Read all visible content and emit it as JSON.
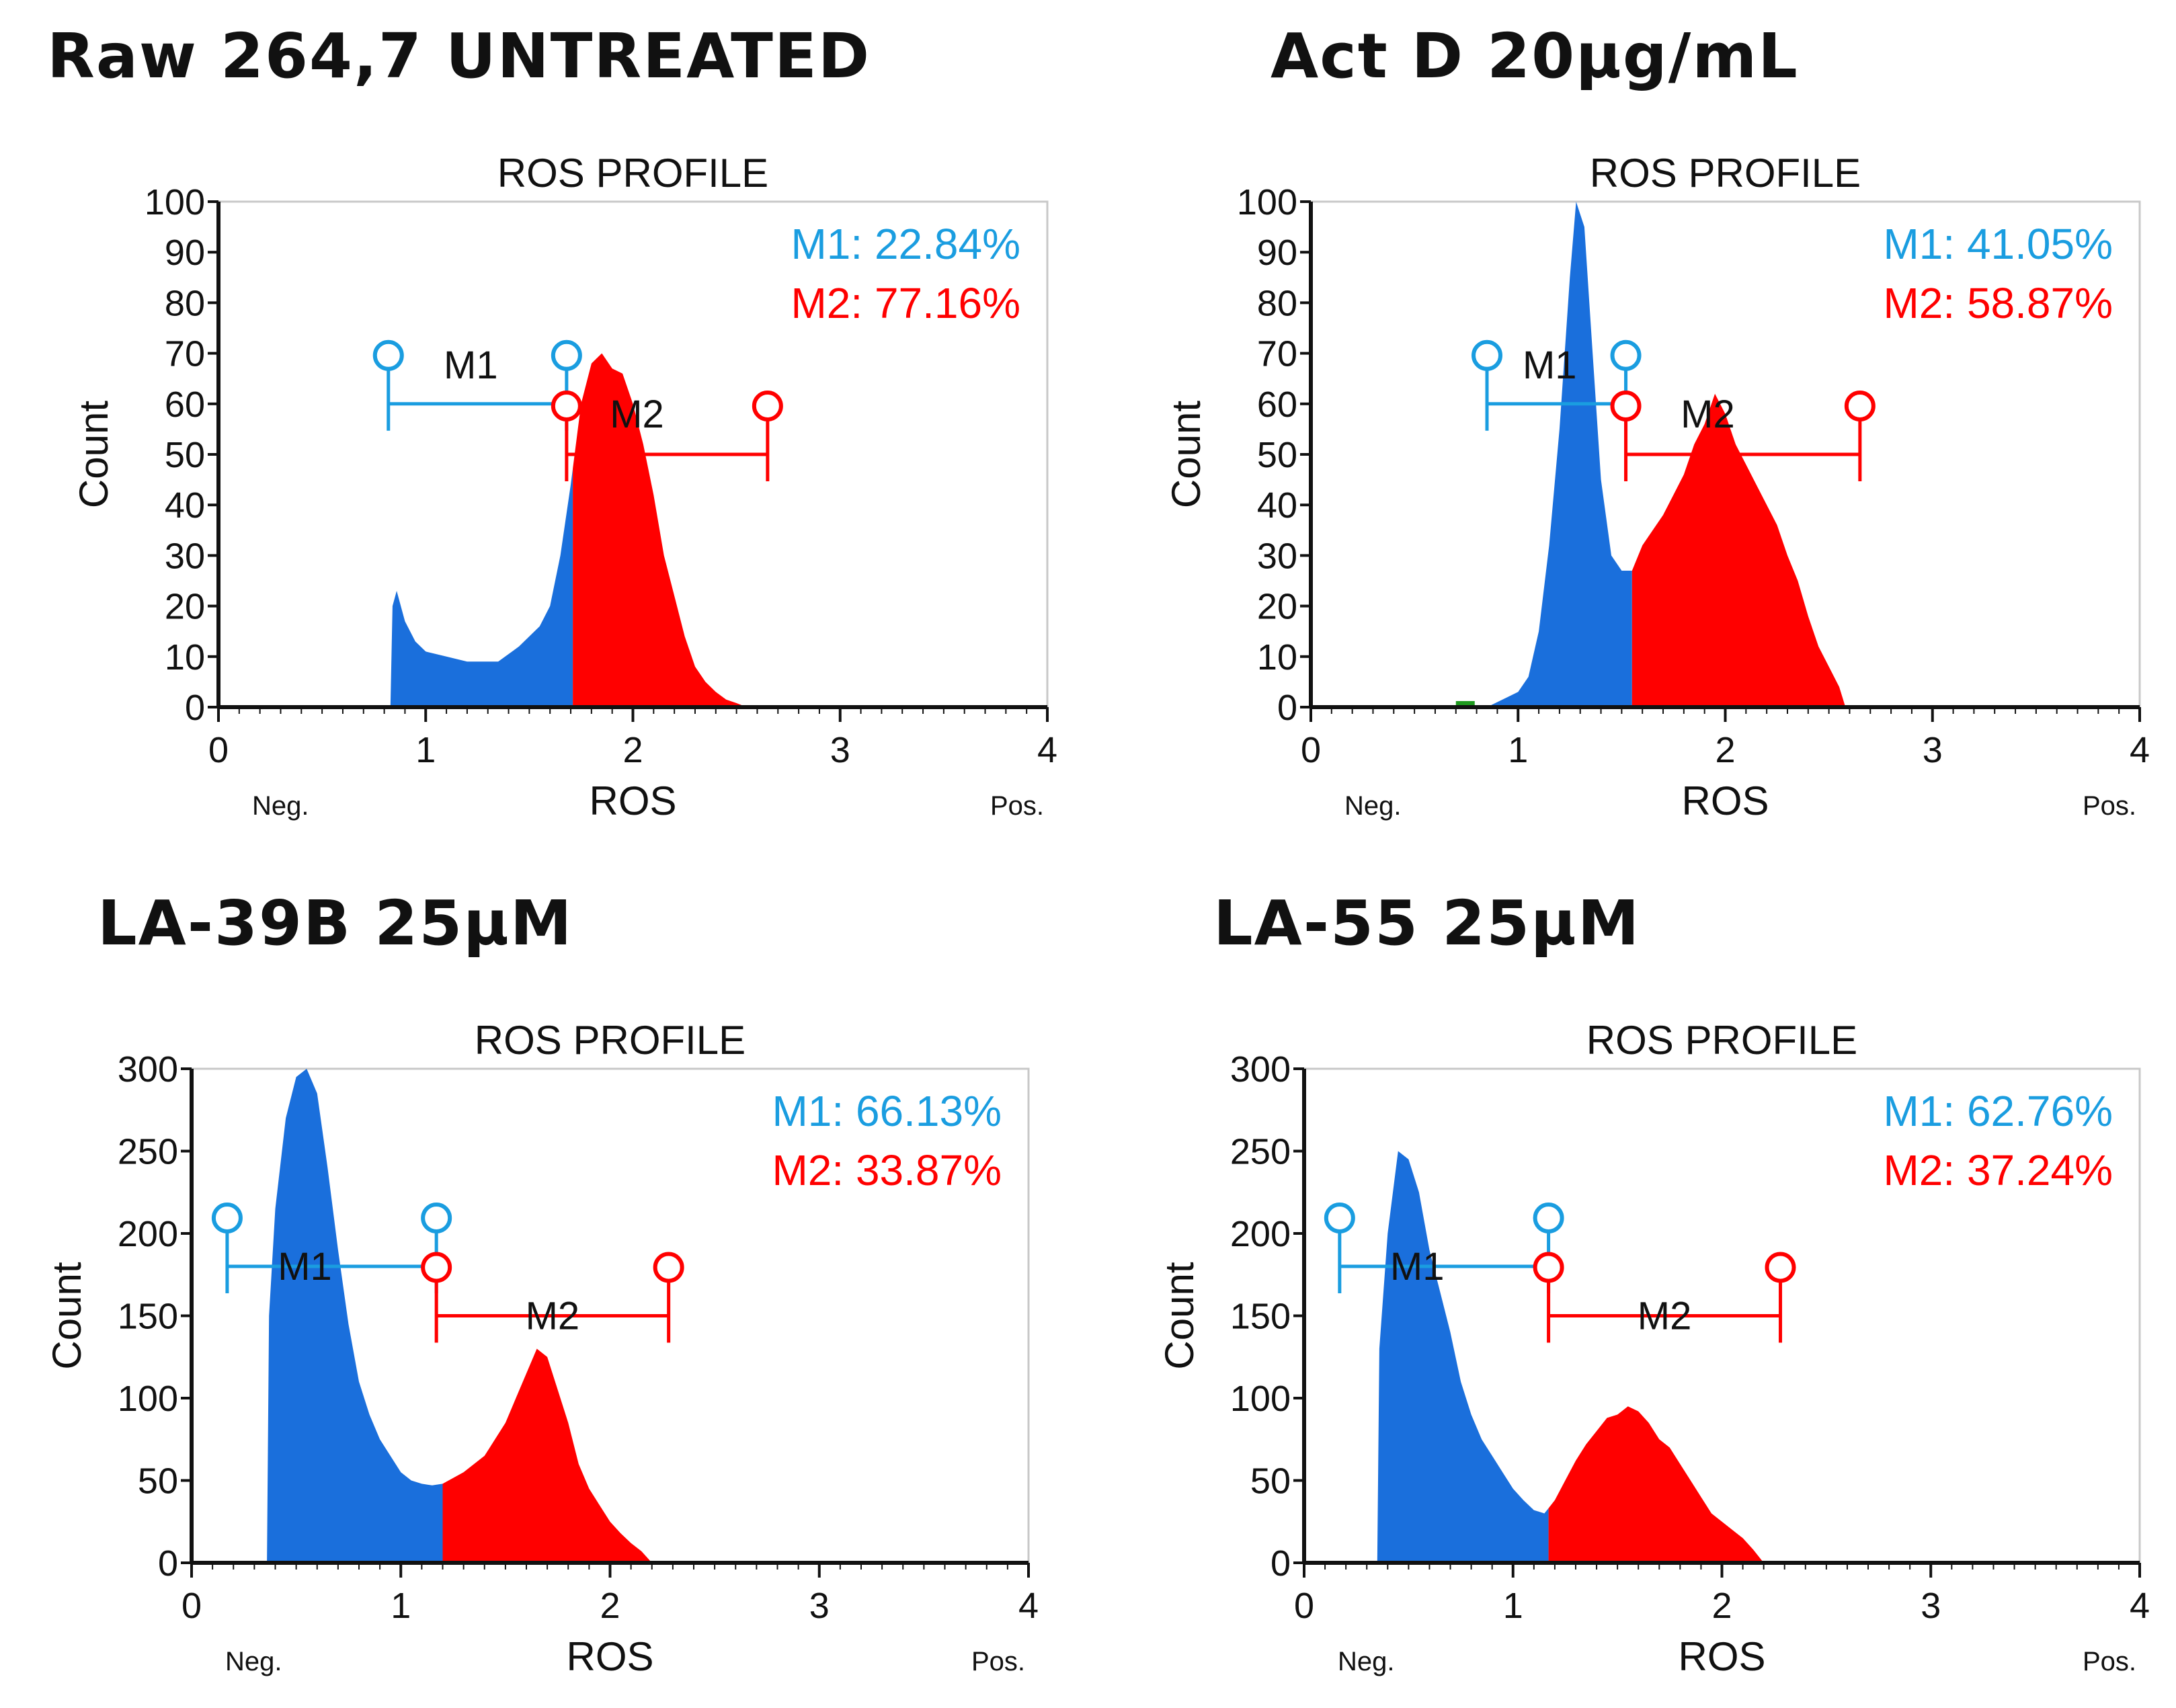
{
  "colors": {
    "m1": "#1a6fdc",
    "m2": "#ff0000",
    "m1_text": "#1a9de0",
    "m2_text": "#ff0000",
    "stray": "#1f9a1f"
  },
  "chart_data": [
    {
      "type": "histogram",
      "panel_title": "Raw 264,7 UNTREATED",
      "title": "ROS PROFILE",
      "xlabel": "ROS",
      "ylabel": "Count",
      "xlim": [
        0,
        4
      ],
      "ylim": [
        0,
        100
      ],
      "xticks": [
        "0",
        "1",
        "2",
        "3",
        "4"
      ],
      "yticks": [
        "0",
        "10",
        "20",
        "30",
        "40",
        "50",
        "60",
        "70",
        "80",
        "90",
        "100"
      ],
      "x_end_labels": {
        "neg": "Neg.",
        "pos": "Pos."
      },
      "markers": [
        {
          "name": "M1",
          "label": "M1",
          "pct_text": "M1: 22.84%",
          "pct": 22.84,
          "range": [
            0.82,
            1.68
          ],
          "bar_y": 60
        },
        {
          "name": "M2",
          "label": "M2",
          "pct_text": "M2: 77.16%",
          "pct": 77.16,
          "range": [
            1.68,
            2.65
          ],
          "bar_y": 50
        }
      ],
      "split_x": 1.71,
      "profile": [
        [
          0.83,
          0
        ],
        [
          0.84,
          20
        ],
        [
          0.86,
          23
        ],
        [
          0.9,
          17
        ],
        [
          0.95,
          13
        ],
        [
          1.0,
          11
        ],
        [
          1.1,
          10
        ],
        [
          1.2,
          9
        ],
        [
          1.3,
          9
        ],
        [
          1.35,
          9
        ],
        [
          1.45,
          12
        ],
        [
          1.55,
          16
        ],
        [
          1.6,
          20
        ],
        [
          1.65,
          30
        ],
        [
          1.7,
          44
        ],
        [
          1.75,
          60
        ],
        [
          1.8,
          68
        ],
        [
          1.85,
          70
        ],
        [
          1.9,
          67
        ],
        [
          1.95,
          66
        ],
        [
          2.0,
          60
        ],
        [
          2.05,
          52
        ],
        [
          2.1,
          42
        ],
        [
          2.15,
          30
        ],
        [
          2.2,
          22
        ],
        [
          2.25,
          14
        ],
        [
          2.3,
          8
        ],
        [
          2.35,
          5
        ],
        [
          2.4,
          3
        ],
        [
          2.45,
          1.5
        ],
        [
          2.5,
          0.8
        ],
        [
          2.55,
          0
        ]
      ]
    },
    {
      "type": "histogram",
      "panel_title": "Act D 20µg/mL",
      "title": "ROS PROFILE",
      "xlabel": "ROS",
      "ylabel": "Count",
      "xlim": [
        0,
        4
      ],
      "ylim": [
        0,
        100
      ],
      "xticks": [
        "0",
        "1",
        "2",
        "3",
        "4"
      ],
      "yticks": [
        "0",
        "10",
        "20",
        "30",
        "40",
        "50",
        "60",
        "70",
        "80",
        "90",
        "100"
      ],
      "x_end_labels": {
        "neg": "Neg.",
        "pos": "Pos."
      },
      "markers": [
        {
          "name": "M1",
          "label": "M1",
          "pct_text": "M1: 41.05%",
          "pct": 41.05,
          "range": [
            0.85,
            1.52
          ],
          "bar_y": 60
        },
        {
          "name": "M2",
          "label": "M2",
          "pct_text": "M2: 58.87%",
          "pct": 58.87,
          "range": [
            1.52,
            2.65
          ],
          "bar_y": 50
        }
      ],
      "split_x": 1.55,
      "profile": [
        [
          0.85,
          0
        ],
        [
          0.9,
          1
        ],
        [
          0.95,
          2
        ],
        [
          1.0,
          3
        ],
        [
          1.05,
          6
        ],
        [
          1.1,
          15
        ],
        [
          1.15,
          32
        ],
        [
          1.2,
          55
        ],
        [
          1.25,
          85
        ],
        [
          1.28,
          100
        ],
        [
          1.32,
          95
        ],
        [
          1.36,
          70
        ],
        [
          1.4,
          45
        ],
        [
          1.45,
          30
        ],
        [
          1.5,
          27
        ],
        [
          1.55,
          27
        ],
        [
          1.6,
          32
        ],
        [
          1.65,
          35
        ],
        [
          1.7,
          38
        ],
        [
          1.75,
          42
        ],
        [
          1.8,
          46
        ],
        [
          1.85,
          52
        ],
        [
          1.9,
          56
        ],
        [
          1.95,
          62
        ],
        [
          2.0,
          58
        ],
        [
          2.05,
          52
        ],
        [
          2.1,
          48
        ],
        [
          2.15,
          44
        ],
        [
          2.2,
          40
        ],
        [
          2.25,
          36
        ],
        [
          2.3,
          30
        ],
        [
          2.35,
          25
        ],
        [
          2.4,
          18
        ],
        [
          2.45,
          12
        ],
        [
          2.5,
          8
        ],
        [
          2.55,
          4
        ],
        [
          2.58,
          0
        ]
      ]
    },
    {
      "type": "histogram",
      "panel_title": "LA-39B 25µM",
      "title": "ROS PROFILE",
      "xlabel": "ROS",
      "ylabel": "Count",
      "xlim": [
        0,
        4
      ],
      "ylim": [
        0,
        300
      ],
      "xticks": [
        "0",
        "1",
        "2",
        "3",
        "4"
      ],
      "yticks": [
        "0",
        "50",
        "100",
        "150",
        "200",
        "250",
        "300"
      ],
      "x_end_labels": {
        "neg": "Neg.",
        "pos": "Pos."
      },
      "markers": [
        {
          "name": "M1",
          "label": "M1",
          "pct_text": "M1: 66.13%",
          "pct": 66.13,
          "range": [
            0.17,
            1.17
          ],
          "bar_y": 180
        },
        {
          "name": "M2",
          "label": "M2",
          "pct_text": "M2: 33.87%",
          "pct": 33.87,
          "range": [
            1.17,
            2.28
          ],
          "bar_y": 150
        }
      ],
      "split_x": 1.2,
      "profile": [
        [
          0.36,
          0
        ],
        [
          0.37,
          150
        ],
        [
          0.4,
          215
        ],
        [
          0.45,
          270
        ],
        [
          0.5,
          295
        ],
        [
          0.55,
          300
        ],
        [
          0.6,
          285
        ],
        [
          0.65,
          240
        ],
        [
          0.7,
          190
        ],
        [
          0.75,
          145
        ],
        [
          0.8,
          110
        ],
        [
          0.85,
          90
        ],
        [
          0.9,
          75
        ],
        [
          0.95,
          65
        ],
        [
          1.0,
          55
        ],
        [
          1.05,
          50
        ],
        [
          1.1,
          48
        ],
        [
          1.15,
          47
        ],
        [
          1.2,
          48
        ],
        [
          1.3,
          55
        ],
        [
          1.4,
          65
        ],
        [
          1.5,
          85
        ],
        [
          1.55,
          100
        ],
        [
          1.6,
          115
        ],
        [
          1.65,
          130
        ],
        [
          1.7,
          125
        ],
        [
          1.75,
          105
        ],
        [
          1.8,
          85
        ],
        [
          1.85,
          60
        ],
        [
          1.9,
          45
        ],
        [
          1.95,
          35
        ],
        [
          2.0,
          25
        ],
        [
          2.05,
          18
        ],
        [
          2.1,
          12
        ],
        [
          2.15,
          7
        ],
        [
          2.2,
          0
        ]
      ]
    },
    {
      "type": "histogram",
      "panel_title": "LA-55 25µM",
      "title": "ROS PROFILE",
      "xlabel": "ROS",
      "ylabel": "Count",
      "xlim": [
        0,
        4
      ],
      "ylim": [
        0,
        300
      ],
      "xticks": [
        "0",
        "1",
        "2",
        "3",
        "4"
      ],
      "yticks": [
        "0",
        "50",
        "100",
        "150",
        "200",
        "250",
        "300"
      ],
      "x_end_labels": {
        "neg": "Neg.",
        "pos": "Pos."
      },
      "markers": [
        {
          "name": "M1",
          "label": "M1",
          "pct_text": "M1: 62.76%",
          "pct": 62.76,
          "range": [
            0.17,
            1.17
          ],
          "bar_y": 180
        },
        {
          "name": "M2",
          "label": "M2",
          "pct_text": "M2: 37.24%",
          "pct": 37.24,
          "range": [
            1.17,
            2.28
          ],
          "bar_y": 150
        }
      ],
      "split_x": 1.17,
      "profile": [
        [
          0.35,
          0
        ],
        [
          0.36,
          130
        ],
        [
          0.4,
          200
        ],
        [
          0.45,
          250
        ],
        [
          0.5,
          245
        ],
        [
          0.55,
          225
        ],
        [
          0.6,
          190
        ],
        [
          0.65,
          165
        ],
        [
          0.7,
          140
        ],
        [
          0.75,
          110
        ],
        [
          0.8,
          90
        ],
        [
          0.85,
          75
        ],
        [
          0.9,
          65
        ],
        [
          0.95,
          55
        ],
        [
          1.0,
          45
        ],
        [
          1.05,
          38
        ],
        [
          1.1,
          32
        ],
        [
          1.15,
          30
        ],
        [
          1.2,
          38
        ],
        [
          1.25,
          50
        ],
        [
          1.3,
          62
        ],
        [
          1.35,
          72
        ],
        [
          1.4,
          80
        ],
        [
          1.45,
          88
        ],
        [
          1.5,
          90
        ],
        [
          1.55,
          95
        ],
        [
          1.6,
          92
        ],
        [
          1.65,
          85
        ],
        [
          1.7,
          75
        ],
        [
          1.75,
          70
        ],
        [
          1.8,
          60
        ],
        [
          1.85,
          50
        ],
        [
          1.9,
          40
        ],
        [
          1.95,
          30
        ],
        [
          2.0,
          25
        ],
        [
          2.05,
          20
        ],
        [
          2.1,
          15
        ],
        [
          2.15,
          8
        ],
        [
          2.2,
          0
        ]
      ]
    }
  ]
}
